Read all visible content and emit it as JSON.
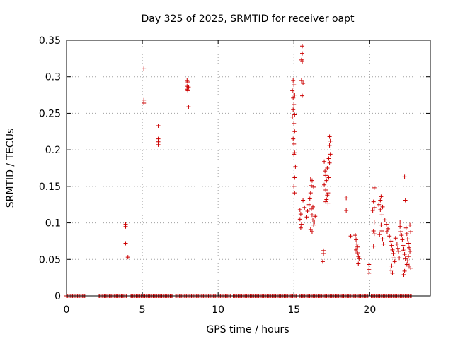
{
  "chart_data": {
    "type": "scatter",
    "title": "Day 325 of 2025, SRMTID for receiver oapt",
    "xlabel": "GPS time / hours",
    "ylabel": "SRMTID / TECUs",
    "xlim": [
      0,
      24
    ],
    "ylim": [
      0,
      0.35
    ],
    "xticks": [
      0,
      5,
      10,
      15,
      20
    ],
    "xtick_labels": [
      "0",
      "5",
      "10",
      "15",
      "20"
    ],
    "yticks": [
      0,
      0.05,
      0.1,
      0.15,
      0.2,
      0.25,
      0.3,
      0.35
    ],
    "ytick_labels": [
      "0",
      "0.05",
      "0.1",
      "0.15",
      "0.2",
      "0.25",
      "0.3",
      "0.35"
    ],
    "grid": true,
    "marker": "plus",
    "marker_color": "#cc0000",
    "series": [
      {
        "name": "SRMTID",
        "points": [
          [
            3.9,
            0.098
          ],
          [
            3.9,
            0.095
          ],
          [
            3.9,
            0.072
          ],
          [
            4.05,
            0.053
          ],
          [
            5.1,
            0.311
          ],
          [
            5.1,
            0.268
          ],
          [
            5.1,
            0.264
          ],
          [
            6.05,
            0.233
          ],
          [
            6.05,
            0.215
          ],
          [
            6.05,
            0.211
          ],
          [
            6.05,
            0.207
          ],
          [
            7.95,
            0.295
          ],
          [
            8.0,
            0.293
          ],
          [
            7.95,
            0.287
          ],
          [
            8.05,
            0.286
          ],
          [
            7.95,
            0.283
          ],
          [
            8.0,
            0.281
          ],
          [
            8.05,
            0.259
          ],
          [
            15.55,
            0.342
          ],
          [
            15.55,
            0.332
          ],
          [
            15.5,
            0.323
          ],
          [
            15.55,
            0.321
          ],
          [
            15.5,
            0.295
          ],
          [
            15.6,
            0.291
          ],
          [
            15.55,
            0.274
          ],
          [
            14.95,
            0.295
          ],
          [
            15.0,
            0.289
          ],
          [
            14.9,
            0.281
          ],
          [
            15.0,
            0.278
          ],
          [
            15.05,
            0.275
          ],
          [
            14.95,
            0.271
          ],
          [
            15.0,
            0.262
          ],
          [
            14.95,
            0.255
          ],
          [
            15.05,
            0.248
          ],
          [
            14.9,
            0.245
          ],
          [
            15.0,
            0.236
          ],
          [
            15.05,
            0.225
          ],
          [
            14.95,
            0.215
          ],
          [
            15.0,
            0.208
          ],
          [
            15.05,
            0.196
          ],
          [
            15.0,
            0.194
          ],
          [
            15.1,
            0.177
          ],
          [
            15.05,
            0.162
          ],
          [
            15.0,
            0.15
          ],
          [
            15.05,
            0.141
          ],
          [
            15.4,
            0.118
          ],
          [
            15.45,
            0.112
          ],
          [
            15.4,
            0.105
          ],
          [
            15.5,
            0.098
          ],
          [
            15.45,
            0.093
          ],
          [
            15.6,
            0.131
          ],
          [
            15.7,
            0.121
          ],
          [
            15.85,
            0.108
          ],
          [
            15.9,
            0.116
          ],
          [
            16.0,
            0.125
          ],
          [
            16.05,
            0.133
          ],
          [
            16.1,
            0.141
          ],
          [
            16.15,
            0.119
          ],
          [
            16.2,
            0.111
          ],
          [
            16.25,
            0.104
          ],
          [
            16.3,
            0.097
          ],
          [
            16.1,
            0.091
          ],
          [
            16.2,
            0.088
          ],
          [
            16.35,
            0.101
          ],
          [
            16.4,
            0.109
          ],
          [
            16.25,
            0.122
          ],
          [
            16.15,
            0.151
          ],
          [
            16.2,
            0.158
          ],
          [
            16.1,
            0.16
          ],
          [
            16.3,
            0.149
          ],
          [
            16.95,
            0.062
          ],
          [
            16.95,
            0.058
          ],
          [
            16.9,
            0.047
          ],
          [
            17.0,
            0.184
          ],
          [
            17.05,
            0.171
          ],
          [
            17.1,
            0.165
          ],
          [
            17.15,
            0.158
          ],
          [
            17.0,
            0.152
          ],
          [
            17.1,
            0.145
          ],
          [
            17.2,
            0.138
          ],
          [
            17.15,
            0.132
          ],
          [
            17.25,
            0.141
          ],
          [
            17.3,
            0.162
          ],
          [
            17.2,
            0.175
          ],
          [
            17.35,
            0.182
          ],
          [
            17.3,
            0.188
          ],
          [
            17.4,
            0.194
          ],
          [
            17.35,
            0.206
          ],
          [
            17.4,
            0.212
          ],
          [
            17.35,
            0.218
          ],
          [
            17.25,
            0.127
          ],
          [
            17.1,
            0.129
          ],
          [
            18.45,
            0.134
          ],
          [
            18.45,
            0.117
          ],
          [
            18.75,
            0.082
          ],
          [
            19.05,
            0.083
          ],
          [
            19.1,
            0.077
          ],
          [
            19.15,
            0.071
          ],
          [
            19.2,
            0.067
          ],
          [
            19.1,
            0.063
          ],
          [
            19.2,
            0.059
          ],
          [
            19.25,
            0.054
          ],
          [
            19.3,
            0.051
          ],
          [
            19.25,
            0.044
          ],
          [
            19.95,
            0.043
          ],
          [
            19.95,
            0.036
          ],
          [
            19.95,
            0.031
          ],
          [
            20.3,
            0.148
          ],
          [
            20.25,
            0.129
          ],
          [
            20.3,
            0.121
          ],
          [
            20.2,
            0.117
          ],
          [
            20.3,
            0.101
          ],
          [
            20.25,
            0.089
          ],
          [
            20.3,
            0.085
          ],
          [
            20.25,
            0.068
          ],
          [
            20.6,
            0.125
          ],
          [
            20.7,
            0.118
          ],
          [
            20.8,
            0.111
          ],
          [
            20.75,
            0.097
          ],
          [
            20.8,
            0.089
          ],
          [
            20.85,
            0.078
          ],
          [
            20.65,
            0.084
          ],
          [
            20.9,
            0.071
          ],
          [
            20.7,
            0.131
          ],
          [
            20.75,
            0.136
          ],
          [
            20.85,
            0.122
          ],
          [
            21.0,
            0.104
          ],
          [
            21.1,
            0.098
          ],
          [
            21.2,
            0.092
          ],
          [
            21.15,
            0.088
          ],
          [
            21.3,
            0.082
          ],
          [
            21.4,
            0.075
          ],
          [
            21.45,
            0.069
          ],
          [
            21.5,
            0.063
          ],
          [
            21.55,
            0.058
          ],
          [
            21.6,
            0.052
          ],
          [
            21.65,
            0.047
          ],
          [
            21.45,
            0.041
          ],
          [
            21.4,
            0.035
          ],
          [
            21.5,
            0.031
          ],
          [
            21.7,
            0.079
          ],
          [
            21.8,
            0.071
          ],
          [
            21.85,
            0.065
          ],
          [
            21.9,
            0.061
          ],
          [
            22.0,
            0.095
          ],
          [
            22.05,
            0.088
          ],
          [
            22.1,
            0.083
          ],
          [
            22.15,
            0.077
          ],
          [
            22.2,
            0.069
          ],
          [
            22.25,
            0.064
          ],
          [
            22.3,
            0.057
          ],
          [
            22.35,
            0.051
          ],
          [
            22.3,
            0.163
          ],
          [
            22.35,
            0.131
          ],
          [
            22.4,
            0.093
          ],
          [
            22.45,
            0.085
          ],
          [
            22.5,
            0.078
          ],
          [
            22.55,
            0.072
          ],
          [
            22.6,
            0.066
          ],
          [
            22.65,
            0.061
          ],
          [
            22.55,
            0.054
          ],
          [
            22.5,
            0.048
          ],
          [
            22.45,
            0.043
          ],
          [
            22.6,
            0.041
          ],
          [
            22.7,
            0.038
          ],
          [
            22.3,
            0.034
          ],
          [
            22.25,
            0.029
          ],
          [
            22.2,
            0.062
          ],
          [
            21.95,
            0.052
          ],
          [
            22.0,
            0.101
          ],
          [
            22.65,
            0.097
          ],
          [
            22.7,
            0.088
          ]
        ]
      }
    ],
    "zero_band": {
      "name": "zero values",
      "y": 0,
      "x_ranges": [
        [
          0,
          1.3
        ],
        [
          2.1,
          4.0
        ],
        [
          4.2,
          7.0
        ],
        [
          7.2,
          10.8
        ],
        [
          11.0,
          15.2
        ],
        [
          15.4,
          19.9
        ],
        [
          20.1,
          22.8
        ]
      ]
    }
  }
}
